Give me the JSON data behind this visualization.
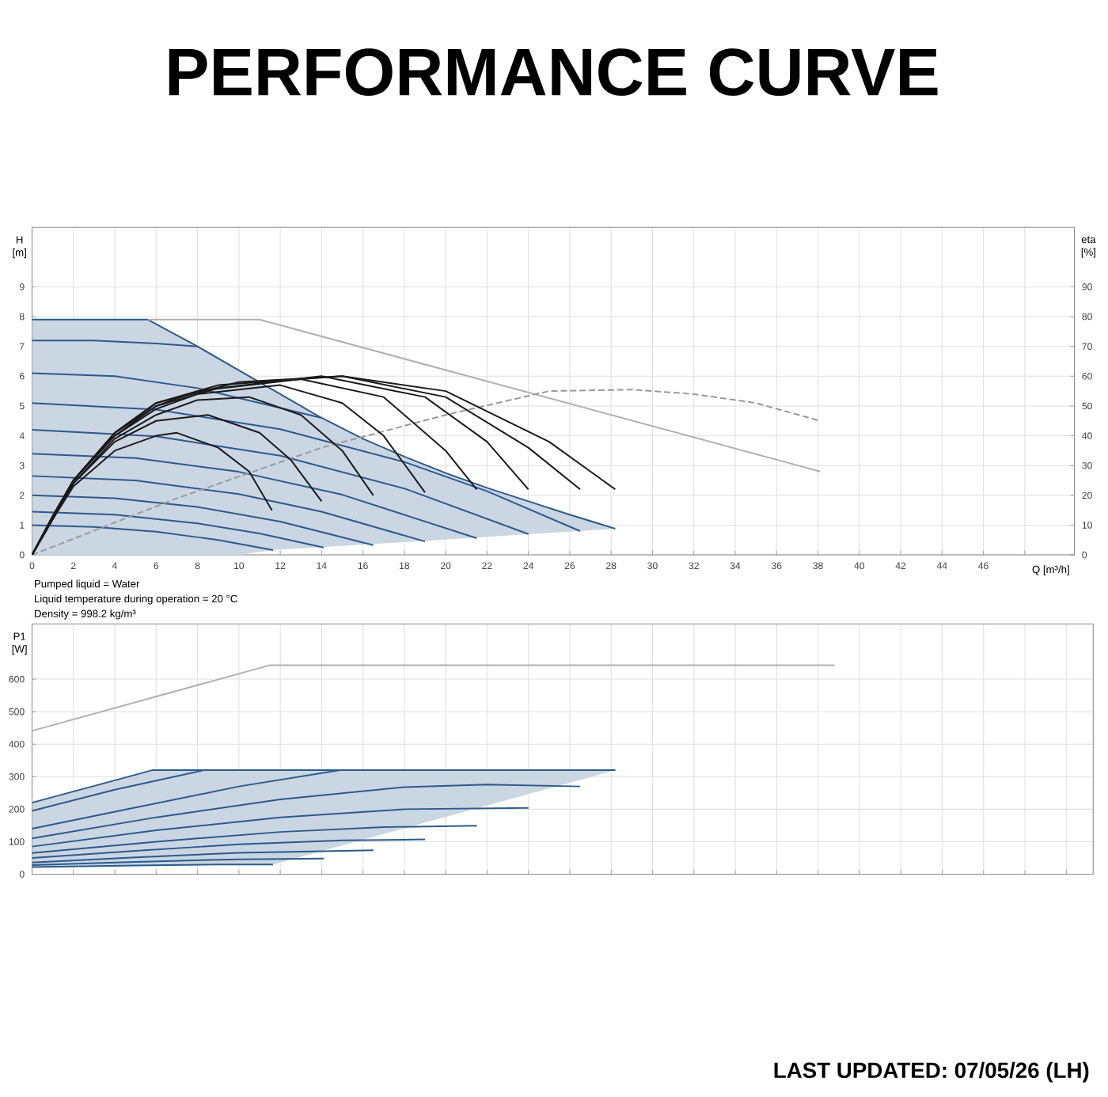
{
  "chart_data": [
    {
      "type": "line",
      "title": "PERFORMANCE CURVE",
      "xlabel": "Q [m³/h]",
      "ylabel": "H [m]",
      "y2label": "eta [%]",
      "annotations": [
        "Pumped liquid = Water",
        "Liquid temperature during operation = 20 °C",
        "Density = 998.2 kg/m³"
      ],
      "xlim": [
        0,
        50.4
      ],
      "xticks": [
        0,
        2,
        4,
        6,
        8,
        10,
        12,
        14,
        16,
        18,
        20,
        22,
        24,
        26,
        28,
        30,
        32,
        34,
        36,
        38,
        40,
        42,
        44,
        46,
        {
          "value": 48,
          "label": null
        }
      ],
      "ylim": [
        0,
        11
      ],
      "yticks": [
        0,
        1,
        2,
        3,
        4,
        5,
        6,
        7,
        8,
        9
      ],
      "y2lim": [
        0,
        110
      ],
      "y2ticks": [
        0,
        10,
        20,
        30,
        40,
        50,
        60,
        70,
        80,
        90
      ],
      "grid": true,
      "series": [
        {
          "color": "#2b5a8c",
          "x": [
            0,
            5.6,
            8,
            10,
            11.65,
            12,
            14,
            16,
            18,
            20,
            22,
            24,
            26,
            28.2
          ],
          "values": [
            7.9,
            7.9,
            7.0,
            6.2,
            5.54,
            5.4,
            4.6,
            3.9,
            3.3,
            2.75,
            2.25,
            1.8,
            1.35,
            0.88
          ],
          "lower": [
            0,
            0,
            0,
            0,
            0.16,
            0.18,
            0.26,
            0.35,
            0.43,
            0.52,
            0.61,
            0.7,
            0.78,
            0.88
          ],
          "upper": [
            7.9,
            7.9,
            7.0,
            6.2,
            5.54,
            5.4,
            4.6,
            3.9,
            3.3,
            2.75,
            2.25,
            1.8,
            1.35,
            0.88
          ]
        },
        {
          "color": "#2b5a8c",
          "x": [
            0,
            3,
            6,
            8
          ],
          "values": [
            7.2,
            7.2,
            7.1,
            7.0
          ]
        },
        {
          "color": "#2b5a8c",
          "x": [
            0,
            4,
            8,
            11,
            14
          ],
          "values": [
            6.1,
            6.0,
            5.6,
            5.1,
            4.6
          ]
        },
        {
          "color": "#2b5a8c",
          "x": [
            0,
            6,
            12,
            18,
            22,
            26.5
          ],
          "values": [
            5.1,
            4.88,
            4.22,
            3.12,
            2.14,
            0.8
          ]
        },
        {
          "color": "#2b5a8c",
          "x": [
            0,
            6,
            12,
            18,
            24
          ],
          "values": [
            4.2,
            3.98,
            3.33,
            2.23,
            0.7
          ]
        },
        {
          "color": "#2b5a8c",
          "x": [
            0,
            5,
            10,
            15,
            21.5
          ],
          "values": [
            3.4,
            3.25,
            2.79,
            2.02,
            0.56
          ]
        },
        {
          "color": "#2b5a8c",
          "x": [
            0,
            5,
            10,
            14,
            19
          ],
          "values": [
            2.65,
            2.5,
            2.04,
            1.45,
            0.45
          ]
        },
        {
          "color": "#2b5a8c",
          "x": [
            0,
            4,
            8,
            12,
            16.5
          ],
          "values": [
            2.0,
            1.9,
            1.61,
            1.12,
            0.33
          ]
        },
        {
          "color": "#2b5a8c",
          "x": [
            0,
            4,
            8,
            11,
            14.1
          ],
          "values": [
            1.45,
            1.35,
            1.06,
            0.72,
            0.25
          ]
        },
        {
          "color": "#2b5a8c",
          "x": [
            0,
            3,
            6,
            9,
            11.65
          ],
          "values": [
            1.0,
            0.94,
            0.78,
            0.5,
            0.16
          ]
        },
        {
          "color": "#b0b0b0",
          "x": [
            5.6,
            11,
            38.1
          ],
          "values": [
            7.9,
            7.9,
            2.8
          ]
        },
        {
          "color": "#999999",
          "axis": "y2",
          "line_style": "dashed",
          "x": [
            0,
            7,
            14,
            20,
            25,
            29,
            32,
            35,
            38.1
          ],
          "values": [
            0,
            19,
            36,
            47,
            55,
            55.5,
            54,
            51,
            45
          ]
        },
        {
          "color": "#1a1a1a",
          "axis": "y2",
          "x": [
            0,
            1,
            2,
            4,
            6,
            7,
            9,
            10.5,
            11.6
          ],
          "values": [
            0,
            12,
            23,
            35,
            40,
            41,
            36,
            28,
            15
          ]
        },
        {
          "color": "#1a1a1a",
          "axis": "y2",
          "x": [
            0,
            1,
            2,
            4,
            6,
            8.5,
            11,
            12.5,
            14
          ],
          "values": [
            0,
            12,
            24,
            38,
            45,
            47,
            41,
            32,
            18
          ]
        },
        {
          "color": "#1a1a1a",
          "axis": "y2",
          "x": [
            0,
            1,
            2,
            4,
            6,
            8,
            10.5,
            13,
            15,
            16.5
          ],
          "values": [
            0,
            12,
            24,
            39,
            47,
            52,
            53,
            47,
            35,
            20
          ]
        },
        {
          "color": "#1a1a1a",
          "axis": "y2",
          "x": [
            0,
            1,
            2,
            4,
            6,
            8,
            12,
            15,
            17,
            19
          ],
          "values": [
            0,
            13,
            25,
            40,
            49,
            54,
            57,
            51,
            40,
            21
          ]
        },
        {
          "color": "#1a1a1a",
          "axis": "y2",
          "x": [
            0,
            1,
            2,
            4,
            6,
            8,
            13,
            17,
            20,
            21.5
          ],
          "values": [
            0,
            13,
            25,
            40,
            50,
            55,
            59,
            53,
            35,
            22
          ]
        },
        {
          "color": "#1a1a1a",
          "axis": "y2",
          "x": [
            0,
            1,
            2,
            4,
            6,
            9,
            14,
            19,
            22,
            24
          ],
          "values": [
            0,
            13,
            25,
            41,
            50,
            56,
            60,
            53,
            38,
            22
          ]
        },
        {
          "color": "#1a1a1a",
          "axis": "y2",
          "x": [
            0,
            1,
            2,
            4,
            6,
            9,
            15,
            20,
            24,
            26.5
          ],
          "values": [
            0,
            13,
            25,
            41,
            51,
            57,
            60,
            53,
            36,
            22
          ]
        },
        {
          "color": "#1a1a1a",
          "axis": "y2",
          "x": [
            0,
            1,
            2,
            4,
            6,
            10,
            15,
            20,
            25,
            28.2
          ],
          "values": [
            0,
            13,
            25,
            41,
            51,
            58,
            60,
            55,
            38,
            22
          ]
        }
      ]
    },
    {
      "type": "line",
      "ylabel": "P1 [W]",
      "annotations": [
        "LAST UPDATED: 07/05/26 (LH)"
      ],
      "xlim": [
        0,
        51.3
      ],
      "xticks": [
        0,
        2,
        4,
        6,
        8,
        10,
        12,
        14,
        16,
        18,
        20,
        22,
        24,
        26,
        28,
        30,
        32,
        34,
        36,
        38,
        40,
        42,
        44,
        46,
        48,
        50
      ],
      "ylim": [
        0,
        770
      ],
      "yticks": [
        0,
        100,
        200,
        300,
        400,
        500,
        600
      ],
      "grid": true,
      "tick_labels": "y",
      "series": [
        {
          "color": "#2b5a8c",
          "x": [
            0,
            5,
            5.8,
            9,
            11.65,
            28.2
          ],
          "values": [
            220,
            306,
            320,
            320,
            320,
            320
          ],
          "lower": [
            22,
            27,
            27.5,
            30,
            30,
            320
          ],
          "upper": [
            220,
            306,
            320,
            320,
            320,
            320
          ]
        },
        {
          "color": "#2b5a8c",
          "x": [
            0,
            4,
            8.3
          ],
          "values": [
            195,
            260,
            320
          ]
        },
        {
          "color": "#2b5a8c",
          "x": [
            0,
            5,
            10,
            14.9
          ],
          "values": [
            140,
            205,
            270,
            320
          ]
        },
        {
          "color": "#2b5a8c",
          "x": [
            0,
            6,
            12,
            18,
            22,
            26.5
          ],
          "values": [
            110,
            175,
            230,
            268,
            276,
            270
          ]
        },
        {
          "color": "#2b5a8c",
          "x": [
            0,
            6,
            12,
            18,
            24
          ],
          "values": [
            85,
            135,
            175,
            200,
            204
          ]
        },
        {
          "color": "#2b5a8c",
          "x": [
            0,
            6,
            12,
            17,
            21.5
          ],
          "values": [
            65,
            100,
            130,
            145,
            149
          ]
        },
        {
          "color": "#2b5a8c",
          "x": [
            0,
            5,
            10,
            15,
            19
          ],
          "values": [
            50,
            72,
            92,
            104,
            107
          ]
        },
        {
          "color": "#2b5a8c",
          "x": [
            0,
            5,
            10,
            16.5
          ],
          "values": [
            36,
            52,
            66,
            74
          ]
        },
        {
          "color": "#2b5a8c",
          "x": [
            0,
            5,
            10,
            14.1
          ],
          "values": [
            28,
            38,
            46,
            48
          ]
        },
        {
          "color": "#2b5a8c",
          "x": [
            0,
            5,
            9,
            11.65
          ],
          "values": [
            22,
            27,
            30,
            30
          ]
        },
        {
          "color": "#b0b0b0",
          "x": [
            0,
            11.5,
            38.8
          ],
          "values": [
            441,
            643,
            643
          ]
        }
      ]
    }
  ]
}
